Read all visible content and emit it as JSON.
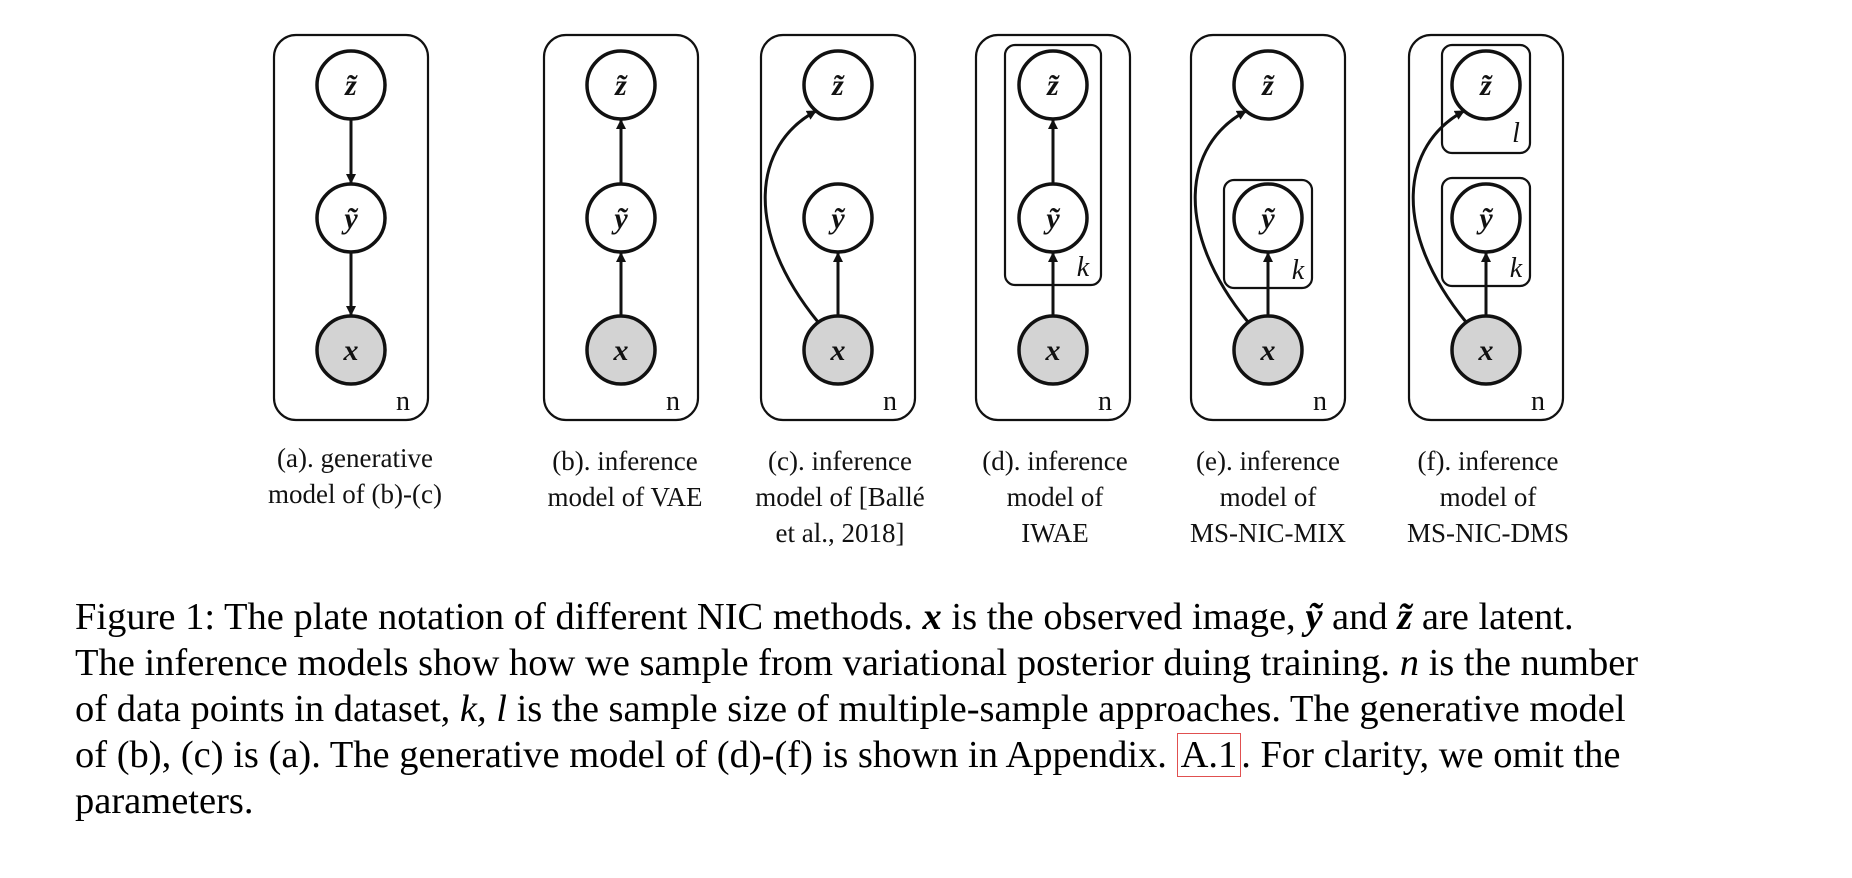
{
  "panels": [
    {
      "id": "a",
      "caption_lines": [
        "(a). generative",
        "model of (b)-(c)"
      ],
      "plate_label": "n"
    },
    {
      "id": "b",
      "caption_lines": [
        "(b). inference",
        "model of VAE"
      ],
      "plate_label": "n"
    },
    {
      "id": "c",
      "caption_lines": [
        "(c). inference",
        "model of [Ballé",
        "et al., 2018]"
      ],
      "plate_label": "n"
    },
    {
      "id": "d",
      "caption_lines": [
        "(d). inference",
        "model of",
        "IWAE"
      ],
      "plate_label": "n",
      "inner_label": "k"
    },
    {
      "id": "e",
      "caption_lines": [
        "(e). inference",
        "model of",
        "MS-NIC-MIX"
      ],
      "plate_label": "n",
      "inner_label": "k"
    },
    {
      "id": "f",
      "caption_lines": [
        "(f). inference",
        "model of",
        "MS-NIC-DMS"
      ],
      "plate_label": "n",
      "inner_label_z": "l",
      "inner_label_y": "k"
    }
  ],
  "nodes": {
    "z": "z̃",
    "y": "ỹ",
    "x": "x"
  },
  "colors": {
    "observed_fill": "#d3d3d3",
    "latent_fill": "#ffffff",
    "stroke": "#111111",
    "ref_box": "#e05050"
  },
  "caption": {
    "l1_a": "Figure 1: The plate notation of different NIC methods.",
    "l1_x": "x",
    "l1_b": "is the observed image,",
    "l1_y": "ỹ",
    "l1_and": "and",
    "l1_z": "z̃",
    "l1_c": "are latent.",
    "l2_a": "The inference models show how we sample from variational posterior duing training.",
    "l2_n": "n",
    "l2_b": "is the number",
    "l3_a": "of data points in dataset,",
    "l3_kl": "k, l",
    "l3_b": "is the sample size of multiple-sample approaches. The generative model",
    "l4_a": "of (b), (c) is (a). The generative model of (d)-(f) is shown in Appendix.",
    "l4_ref": "A.1",
    "l4_b": ". For clarity, we omit the",
    "l5": "parameters."
  }
}
